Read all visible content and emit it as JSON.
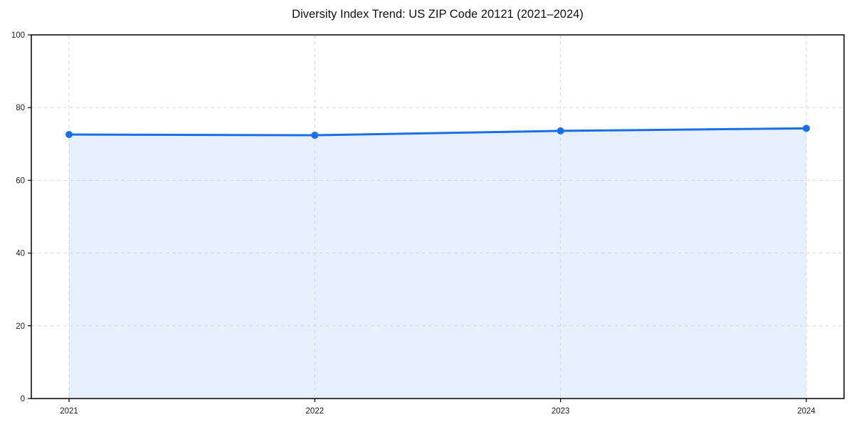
{
  "chart_data": {
    "type": "area",
    "title": "Diversity Index Trend: US ZIP Code 20121 (2021–2024)",
    "xlabel": "",
    "ylabel": "",
    "categories": [
      "2021",
      "2022",
      "2023",
      "2024"
    ],
    "values": [
      72.6,
      72.4,
      73.6,
      74.3
    ],
    "ylim": [
      0,
      100
    ],
    "yticks": [
      0,
      20,
      40,
      60,
      80,
      100
    ],
    "grid": true,
    "grid_style": "dashed",
    "legend": "none",
    "marker": "circle",
    "colors": {
      "line": "#1a6fe6",
      "fill": "rgba(26, 111, 230, 0.11)",
      "grid": "#d7d7d7",
      "axis": "#000000",
      "text": "#1a1a1a",
      "background": "#ffffff"
    }
  }
}
